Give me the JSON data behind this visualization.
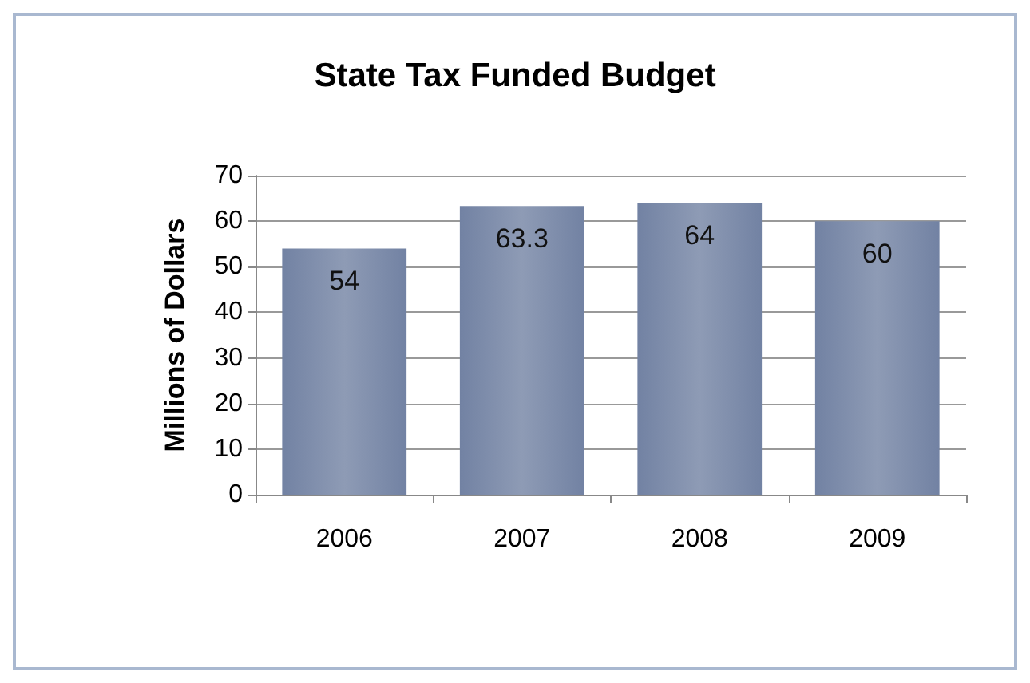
{
  "chart_data": {
    "type": "bar",
    "title": "State Tax Funded Budget",
    "ylabel": "Millions of Dollars",
    "categories": [
      "2006",
      "2007",
      "2008",
      "2009"
    ],
    "values": [
      54,
      63.3,
      64,
      60
    ],
    "color": "#7282a3",
    "ylim": [
      0,
      70
    ],
    "yticks": [
      0,
      10,
      20,
      30,
      40,
      50,
      60,
      70
    ],
    "grid": "y",
    "data_labels": true
  }
}
